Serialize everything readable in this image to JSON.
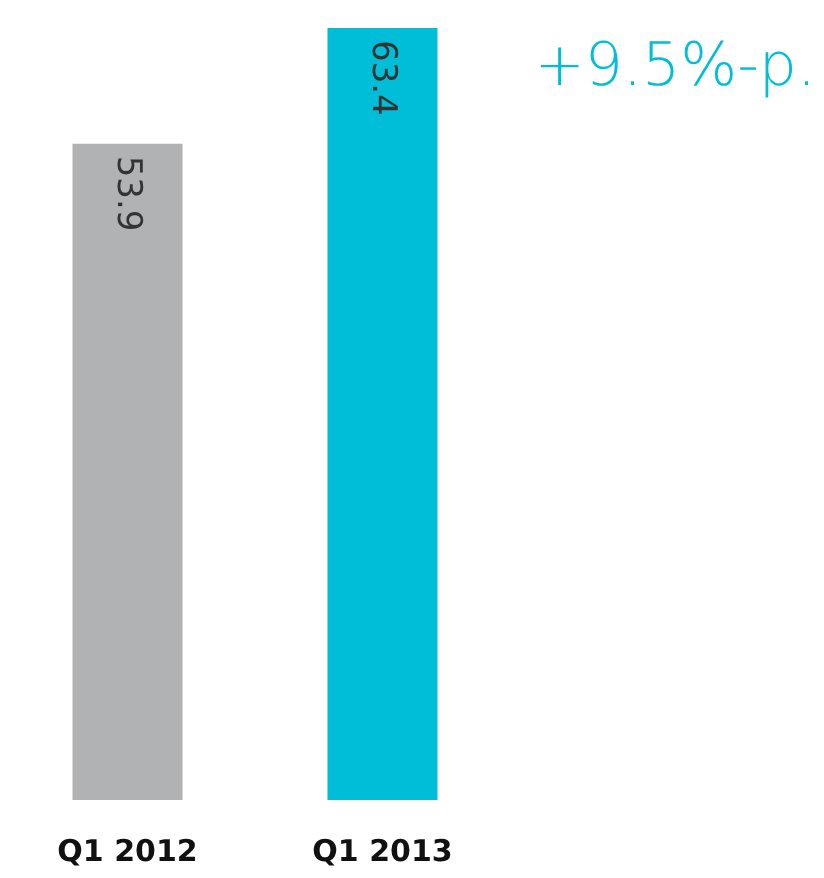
{
  "chart_data": {
    "type": "bar",
    "categories": [
      "Q1 2012",
      "Q1 2013"
    ],
    "values": [
      53.9,
      63.4
    ],
    "colors": [
      "#b1b2b3",
      "#00bed8"
    ],
    "data_labels": true,
    "annotations": [
      "+9.5%-p."
    ]
  }
}
